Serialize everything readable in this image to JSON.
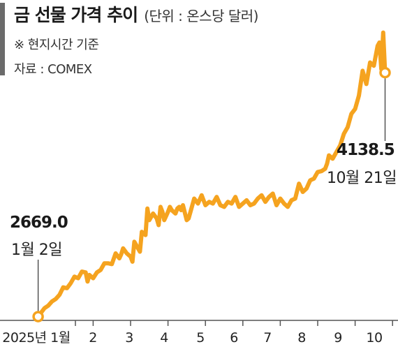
{
  "header": {
    "title": "금 선물 가격 추이",
    "unit": "(단위 : 온스당 달러)",
    "note": "※ 현지시간 기준",
    "source": "자료 : COMEX"
  },
  "annotations": {
    "start_value": "2669.0",
    "start_date": "1월 2일",
    "end_value": "4138.5",
    "end_date": "10월 21일"
  },
  "chart_data": {
    "type": "line",
    "title": "금 선물 가격 추이",
    "unit": "(단위 : 온스당 달러)",
    "source": "자료 : COMEX",
    "xlabel": "",
    "ylabel": "",
    "x_tick_labels": [
      "2025년 1월",
      "2",
      "3",
      "4",
      "5",
      "6",
      "7",
      "8",
      "9",
      "10"
    ],
    "x_tick_pos": [
      1,
      2,
      3,
      4,
      5,
      6,
      7,
      8,
      9,
      10
    ],
    "xlim": [
      1,
      10.75
    ],
    "ylim": [
      2600,
      4450
    ],
    "grid": false,
    "line_color": "#f5a31f",
    "axis_color": "#555555",
    "series": [
      {
        "x": [
          1.03,
          1.1,
          1.2,
          1.3,
          1.4,
          1.5,
          1.6,
          1.7,
          1.8,
          1.9,
          2.0,
          2.1,
          2.2,
          2.3,
          2.35,
          2.4,
          2.5,
          2.6,
          2.7,
          2.8,
          2.9,
          3.0,
          3.1,
          3.2,
          3.25,
          3.3,
          3.4,
          3.5,
          3.55,
          3.6,
          3.7,
          3.75,
          3.8,
          3.9,
          3.95,
          4.0,
          4.05,
          4.1,
          4.2,
          4.25,
          4.3,
          4.35,
          4.4,
          4.5,
          4.55,
          4.6,
          4.7,
          4.75,
          4.8,
          4.85,
          4.9,
          5.0,
          5.05,
          5.1,
          5.2,
          5.3,
          5.4,
          5.5,
          5.6,
          5.7,
          5.8,
          5.9,
          6.0,
          6.1,
          6.2,
          6.3,
          6.4,
          6.5,
          6.6,
          6.7,
          6.8,
          6.9,
          7.0,
          7.1,
          7.2,
          7.3,
          7.4,
          7.5,
          7.6,
          7.7,
          7.8,
          7.9,
          8.0,
          8.1,
          8.2,
          8.3,
          8.4,
          8.5,
          8.6,
          8.7,
          8.75,
          8.8,
          8.9,
          9.0,
          9.1,
          9.2,
          9.3,
          9.4,
          9.5,
          9.6,
          9.7,
          9.8,
          9.9,
          10.0,
          10.1,
          10.15,
          10.2,
          10.25,
          10.3
        ],
        "y": [
          2669.0,
          2690,
          2720,
          2735,
          2760,
          2775,
          2800,
          2845,
          2840,
          2870,
          2910,
          2900,
          2940,
          2935,
          2880,
          2920,
          2900,
          2935,
          2950,
          2990,
          2990,
          2985,
          3050,
          3020,
          3045,
          3080,
          3050,
          3030,
          3000,
          3120,
          3080,
          3060,
          3180,
          3160,
          3320,
          3250,
          3270,
          3290,
          3260,
          3220,
          3330,
          3300,
          3250,
          3300,
          3330,
          3310,
          3290,
          3320,
          3330,
          3310,
          3340,
          3250,
          3260,
          3300,
          3380,
          3350,
          3400,
          3340,
          3360,
          3350,
          3390,
          3340,
          3330,
          3360,
          3350,
          3390,
          3330,
          3350,
          3370,
          3340,
          3350,
          3380,
          3400,
          3360,
          3390,
          3410,
          3340,
          3380,
          3350,
          3330,
          3370,
          3380,
          3470,
          3420,
          3440,
          3490,
          3500,
          3540,
          3545,
          3560,
          3590,
          3640,
          3620,
          3660,
          3700,
          3770,
          3810,
          3890,
          3920,
          4000,
          4150,
          4070,
          4200,
          4180,
          4300,
          4320,
          4160,
          4380,
          4138.5
        ]
      }
    ],
    "start_point": {
      "x": 1.03,
      "y": 2669.0
    },
    "end_point": {
      "x": 10.3,
      "y": 4138.5
    }
  }
}
